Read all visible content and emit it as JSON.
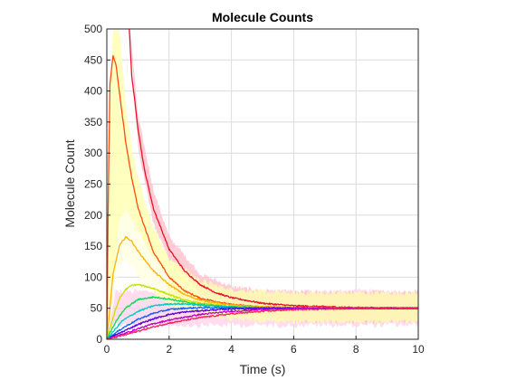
{
  "chart_data": {
    "type": "line",
    "title": "Molecule Counts",
    "xlabel": "Time (s)",
    "ylabel": "Molecule Count",
    "xlim": [
      0,
      10
    ],
    "ylim": [
      0,
      500
    ],
    "xticks": [
      "0",
      "2",
      "4",
      "6",
      "8",
      "10"
    ],
    "yticks": [
      "0",
      "50",
      "100",
      "150",
      "200",
      "250",
      "300",
      "350",
      "400",
      "450",
      "500"
    ],
    "grid": true,
    "legend": "none",
    "steady_state": 50,
    "mean_series": [
      {
        "color": "#e8102a",
        "x": [
          0.72,
          0.8,
          1.0,
          1.2,
          1.5,
          2.0,
          2.5,
          3.0,
          3.5,
          4.0,
          5.0,
          6.0,
          8.0,
          10.0
        ],
        "values": [
          500,
          425,
          340,
          275,
          210,
          145,
          110,
          88,
          75,
          67,
          58,
          54,
          51,
          50
        ]
      },
      {
        "color": "#ff4b12",
        "x": [
          0,
          0.05,
          0.1,
          0.2,
          0.3,
          0.4,
          0.6,
          0.8,
          1.0,
          1.5,
          2.0,
          2.5,
          3.0,
          4.0,
          5.0,
          6.0,
          8.0,
          10.0
        ],
        "values": [
          0,
          250,
          410,
          458,
          440,
          400,
          320,
          260,
          212,
          140,
          100,
          78,
          66,
          56,
          52,
          51,
          50,
          50
        ]
      },
      {
        "color": "#ffb400",
        "x": [
          0,
          0.1,
          0.2,
          0.4,
          0.6,
          0.8,
          1.0,
          1.5,
          2.0,
          2.5,
          3.0,
          4.0,
          5.0,
          6.0,
          8.0,
          10.0
        ],
        "values": [
          0,
          50,
          105,
          150,
          165,
          158,
          142,
          110,
          88,
          72,
          63,
          55,
          52,
          51,
          50,
          50
        ]
      },
      {
        "color": "#c8e000",
        "x": [
          0,
          0.2,
          0.4,
          0.6,
          0.8,
          1.0,
          1.5,
          2.0,
          2.5,
          3.0,
          4.0,
          5.0,
          6.0,
          8.0,
          10.0
        ],
        "values": [
          0,
          35,
          65,
          80,
          87,
          88,
          82,
          72,
          63,
          58,
          53,
          51,
          50,
          50,
          50
        ]
      },
      {
        "color": "#00e050",
        "x": [
          0,
          0.3,
          0.6,
          1.0,
          1.5,
          2.0,
          2.5,
          3.0,
          4.0,
          5.0,
          6.0,
          8.0,
          10.0
        ],
        "values": [
          0,
          30,
          50,
          64,
          68,
          65,
          60,
          56,
          52,
          51,
          50,
          50,
          50
        ]
      },
      {
        "color": "#00c8c8",
        "x": [
          0,
          0.5,
          1.0,
          1.5,
          2.0,
          2.5,
          3.0,
          4.0,
          5.0,
          6.0,
          8.0,
          10.0
        ],
        "values": [
          0,
          30,
          45,
          54,
          57,
          57,
          55,
          52,
          51,
          50,
          50,
          50
        ]
      },
      {
        "color": "#1060ff",
        "x": [
          0,
          0.5,
          1.0,
          1.5,
          2.0,
          2.5,
          3.0,
          4.0,
          5.0,
          6.0,
          8.0,
          10.0
        ],
        "values": [
          0,
          18,
          32,
          42,
          48,
          50,
          51,
          51,
          50,
          50,
          50,
          50
        ]
      },
      {
        "color": "#5a00e0",
        "x": [
          0,
          0.5,
          1.0,
          1.5,
          2.0,
          2.5,
          3.0,
          4.0,
          5.0,
          6.0,
          8.0,
          10.0
        ],
        "values": [
          0,
          12,
          24,
          33,
          40,
          44,
          46,
          49,
          50,
          50,
          50,
          50
        ]
      },
      {
        "color": "#c000c0",
        "x": [
          0,
          0.5,
          1.0,
          1.5,
          2.0,
          3.0,
          4.0,
          5.0,
          6.0,
          8.0,
          10.0
        ],
        "values": [
          0,
          8,
          17,
          25,
          31,
          40,
          45,
          48,
          49,
          50,
          50
        ]
      },
      {
        "color": "#ff2060",
        "x": [
          0,
          0.5,
          1.0,
          1.5,
          2.0,
          3.0,
          4.0,
          5.0,
          6.0,
          8.0,
          10.0
        ],
        "values": [
          0,
          6,
          13,
          20,
          26,
          35,
          41,
          45,
          48,
          50,
          50
        ]
      }
    ],
    "noise_bands": [
      {
        "color": "#ffc0cb",
        "x": [
          0,
          0.75,
          1.0,
          1.5,
          2.0,
          3.0,
          4.0,
          5.0,
          6.0,
          8.0,
          10.0
        ],
        "upper": [
          0,
          500,
          360,
          240,
          165,
          105,
          85,
          78,
          76,
          76,
          77
        ],
        "lower": [
          0,
          500,
          310,
          185,
          130,
          75,
          55,
          40,
          30,
          28,
          28
        ]
      },
      {
        "color": "#ffffb0",
        "x": [
          0,
          0.1,
          0.2,
          0.4,
          0.6,
          0.8,
          1.0,
          1.5,
          2.0,
          3.0,
          4.0,
          6.0,
          10.0
        ],
        "upper": [
          0,
          400,
          500,
          500,
          380,
          310,
          260,
          180,
          130,
          95,
          80,
          75,
          75
        ],
        "lower": [
          0,
          40,
          90,
          120,
          130,
          120,
          105,
          75,
          55,
          40,
          32,
          28,
          28
        ]
      },
      {
        "color": "#fffff0",
        "x": [
          0,
          0.4,
          0.6,
          1.0,
          1.5,
          2.0
        ],
        "upper": [
          0,
          190,
          210,
          175,
          130,
          100
        ],
        "lower": [
          0,
          110,
          125,
          105,
          80,
          65
        ]
      }
    ]
  }
}
